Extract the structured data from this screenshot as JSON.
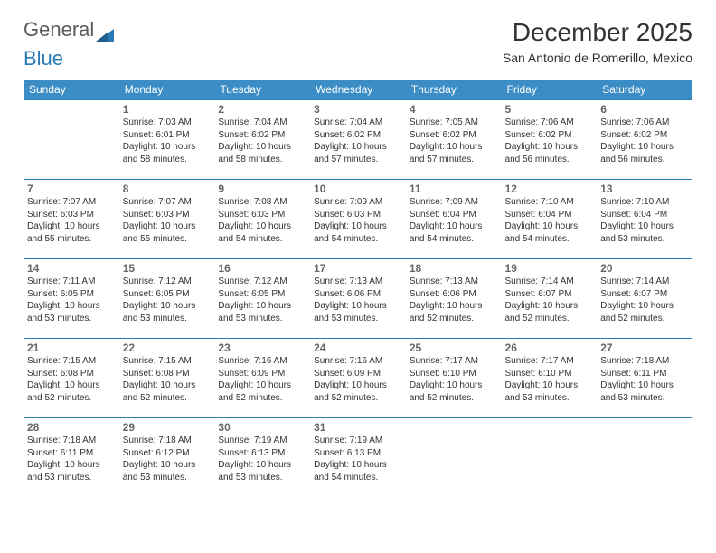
{
  "logo": {
    "text1": "General",
    "text2": "Blue"
  },
  "title": "December 2025",
  "subtitle": "San Antonio de Romerillo, Mexico",
  "headers_bg": "#3c8dc5",
  "header_text_color": "#ffffff",
  "divider_color": "#2a7ab8",
  "text_color": "#333333",
  "daynum_color": "#666666",
  "font_family": "Arial",
  "day_headers": [
    "Sunday",
    "Monday",
    "Tuesday",
    "Wednesday",
    "Thursday",
    "Friday",
    "Saturday"
  ],
  "labels": {
    "sunrise": "Sunrise:",
    "sunset": "Sunset:",
    "daylight": "Daylight:"
  },
  "weeks": [
    [
      null,
      {
        "n": "1",
        "sr": "7:03 AM",
        "ss": "6:01 PM",
        "dl": "10 hours and 58 minutes."
      },
      {
        "n": "2",
        "sr": "7:04 AM",
        "ss": "6:02 PM",
        "dl": "10 hours and 58 minutes."
      },
      {
        "n": "3",
        "sr": "7:04 AM",
        "ss": "6:02 PM",
        "dl": "10 hours and 57 minutes."
      },
      {
        "n": "4",
        "sr": "7:05 AM",
        "ss": "6:02 PM",
        "dl": "10 hours and 57 minutes."
      },
      {
        "n": "5",
        "sr": "7:06 AM",
        "ss": "6:02 PM",
        "dl": "10 hours and 56 minutes."
      },
      {
        "n": "6",
        "sr": "7:06 AM",
        "ss": "6:02 PM",
        "dl": "10 hours and 56 minutes."
      }
    ],
    [
      {
        "n": "7",
        "sr": "7:07 AM",
        "ss": "6:03 PM",
        "dl": "10 hours and 55 minutes."
      },
      {
        "n": "8",
        "sr": "7:07 AM",
        "ss": "6:03 PM",
        "dl": "10 hours and 55 minutes."
      },
      {
        "n": "9",
        "sr": "7:08 AM",
        "ss": "6:03 PM",
        "dl": "10 hours and 54 minutes."
      },
      {
        "n": "10",
        "sr": "7:09 AM",
        "ss": "6:03 PM",
        "dl": "10 hours and 54 minutes."
      },
      {
        "n": "11",
        "sr": "7:09 AM",
        "ss": "6:04 PM",
        "dl": "10 hours and 54 minutes."
      },
      {
        "n": "12",
        "sr": "7:10 AM",
        "ss": "6:04 PM",
        "dl": "10 hours and 54 minutes."
      },
      {
        "n": "13",
        "sr": "7:10 AM",
        "ss": "6:04 PM",
        "dl": "10 hours and 53 minutes."
      }
    ],
    [
      {
        "n": "14",
        "sr": "7:11 AM",
        "ss": "6:05 PM",
        "dl": "10 hours and 53 minutes."
      },
      {
        "n": "15",
        "sr": "7:12 AM",
        "ss": "6:05 PM",
        "dl": "10 hours and 53 minutes."
      },
      {
        "n": "16",
        "sr": "7:12 AM",
        "ss": "6:05 PM",
        "dl": "10 hours and 53 minutes."
      },
      {
        "n": "17",
        "sr": "7:13 AM",
        "ss": "6:06 PM",
        "dl": "10 hours and 53 minutes."
      },
      {
        "n": "18",
        "sr": "7:13 AM",
        "ss": "6:06 PM",
        "dl": "10 hours and 52 minutes."
      },
      {
        "n": "19",
        "sr": "7:14 AM",
        "ss": "6:07 PM",
        "dl": "10 hours and 52 minutes."
      },
      {
        "n": "20",
        "sr": "7:14 AM",
        "ss": "6:07 PM",
        "dl": "10 hours and 52 minutes."
      }
    ],
    [
      {
        "n": "21",
        "sr": "7:15 AM",
        "ss": "6:08 PM",
        "dl": "10 hours and 52 minutes."
      },
      {
        "n": "22",
        "sr": "7:15 AM",
        "ss": "6:08 PM",
        "dl": "10 hours and 52 minutes."
      },
      {
        "n": "23",
        "sr": "7:16 AM",
        "ss": "6:09 PM",
        "dl": "10 hours and 52 minutes."
      },
      {
        "n": "24",
        "sr": "7:16 AM",
        "ss": "6:09 PM",
        "dl": "10 hours and 52 minutes."
      },
      {
        "n": "25",
        "sr": "7:17 AM",
        "ss": "6:10 PM",
        "dl": "10 hours and 52 minutes."
      },
      {
        "n": "26",
        "sr": "7:17 AM",
        "ss": "6:10 PM",
        "dl": "10 hours and 53 minutes."
      },
      {
        "n": "27",
        "sr": "7:18 AM",
        "ss": "6:11 PM",
        "dl": "10 hours and 53 minutes."
      }
    ],
    [
      {
        "n": "28",
        "sr": "7:18 AM",
        "ss": "6:11 PM",
        "dl": "10 hours and 53 minutes."
      },
      {
        "n": "29",
        "sr": "7:18 AM",
        "ss": "6:12 PM",
        "dl": "10 hours and 53 minutes."
      },
      {
        "n": "30",
        "sr": "7:19 AM",
        "ss": "6:13 PM",
        "dl": "10 hours and 53 minutes."
      },
      {
        "n": "31",
        "sr": "7:19 AM",
        "ss": "6:13 PM",
        "dl": "10 hours and 54 minutes."
      },
      null,
      null,
      null
    ]
  ]
}
